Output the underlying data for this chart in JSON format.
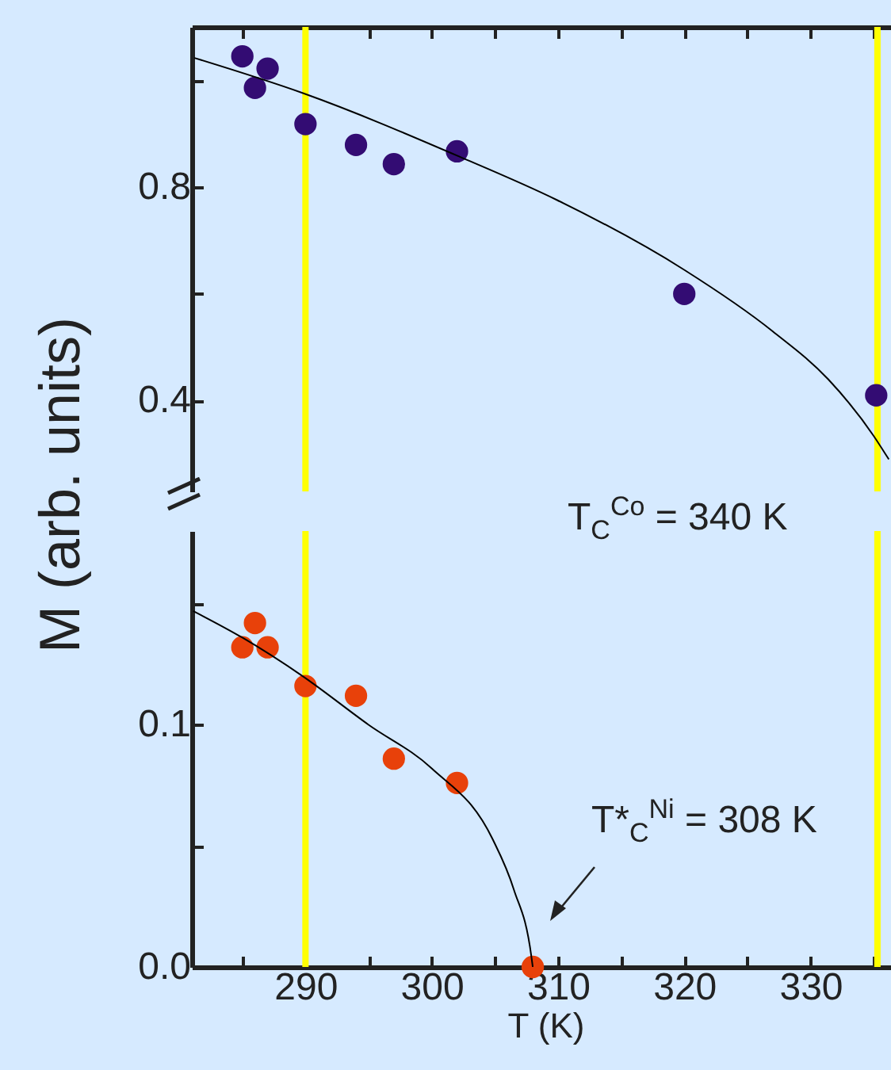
{
  "chart_data": [
    {
      "type": "scatter",
      "ylabel": "M (arb. units)",
      "xlim": [
        281,
        337
      ],
      "ylim": [
        0.23,
        1.1
      ],
      "tick_labels": "y",
      "marker": "circle",
      "xticks": [
        {
          "value": 285,
          "label": null
        },
        {
          "value": 290,
          "label": null
        },
        {
          "value": 295,
          "label": null
        },
        {
          "value": 300,
          "label": null
        },
        {
          "value": 305,
          "label": null
        },
        {
          "value": 310,
          "label": null
        },
        {
          "value": 315,
          "label": null
        },
        {
          "value": 320,
          "label": null
        },
        {
          "value": 325,
          "label": null
        },
        {
          "value": 330,
          "label": null
        },
        {
          "value": 335,
          "label": null
        }
      ],
      "yticks": [
        0.4,
        {
          "value": 0.6,
          "label": null
        },
        0.8,
        {
          "value": 1.0,
          "label": null
        }
      ],
      "series": [
        {
          "type": "scatter",
          "color": "#330c73",
          "x": [
            285,
            286,
            287,
            290,
            294,
            297,
            302,
            320,
            335.2
          ],
          "values": [
            1.045,
            0.986,
            1.022,
            0.918,
            0.879,
            0.843,
            0.867,
            0.6,
            0.41
          ]
        },
        {
          "type": "line",
          "color": "#000000",
          "marker": "none",
          "line_style": "solid",
          "x": [
            281.2,
            289.8,
            302.2,
            309.9,
            320,
            327,
            331.4,
            335,
            336.2
          ],
          "values": [
            1.042,
            0.976,
            0.857,
            0.776,
            0.645,
            0.53,
            0.44,
            0.334,
            0.29
          ]
        }
      ],
      "ref_lines": [
        {
          "axis": "x",
          "value": 290,
          "color": "#ffff00"
        },
        {
          "axis": "x",
          "value": 335.3,
          "color": "#ffff00"
        }
      ]
    },
    {
      "type": "scatter",
      "xlabel": "T (K)",
      "xlim": [
        281,
        337
      ],
      "ylim": [
        0,
        0.18
      ],
      "marker": "circle",
      "xticks": [
        {
          "value": 285,
          "label": null
        },
        290,
        {
          "value": 295,
          "label": null
        },
        300,
        {
          "value": 305,
          "label": null
        },
        310,
        {
          "value": 315,
          "label": null
        },
        320,
        {
          "value": 325,
          "label": null
        },
        330,
        {
          "value": 335,
          "label": null
        }
      ],
      "yticks": [
        {
          "value": 0,
          "label": "0.0"
        },
        {
          "value": 0.05,
          "label": null
        },
        0.1,
        {
          "value": 0.15,
          "label": null
        }
      ],
      "series": [
        {
          "type": "scatter",
          "color": "#e8410a",
          "x": [
            285,
            286,
            287,
            290,
            294,
            297,
            302,
            308
          ],
          "values": [
            0.132,
            0.142,
            0.132,
            0.116,
            0.112,
            0.086,
            0.076,
            0
          ]
        },
        {
          "type": "line",
          "color": "#000000",
          "marker": "none",
          "line_style": "solid",
          "x": [
            281.1,
            285,
            289.8,
            295,
            300,
            304.8,
            306.5,
            307.9,
            308
          ],
          "values": [
            0.147,
            0.136,
            0.12,
            0.1,
            0.082,
            0.053,
            0.032,
            0.004,
            0
          ]
        }
      ],
      "ref_lines": [
        {
          "axis": "x",
          "value": 290,
          "color": "#ffff00"
        },
        {
          "axis": "x",
          "value": 335.3,
          "color": "#ffff00"
        }
      ],
      "annotations": [
        "T$_{C}$$^{Co}$ = 340 K",
        "T*$_{C}$$^{Ni}$ = 308 K"
      ]
    }
  ]
}
